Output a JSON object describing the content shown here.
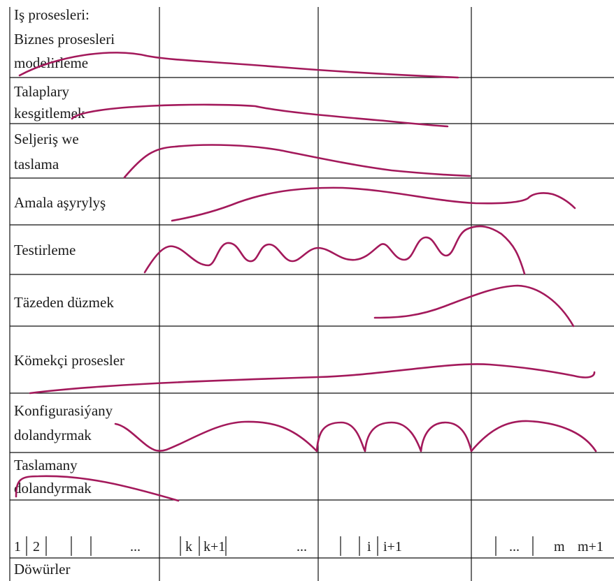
{
  "curve_color": "#a3195b",
  "rows": [
    {
      "id": "business",
      "lines": [
        "Iş prosesleri:",
        "Biznes prosesleri",
        "modelirleme"
      ]
    },
    {
      "id": "requirements",
      "lines": [
        "Talaplary",
        "kesgitlemek"
      ]
    },
    {
      "id": "analysis",
      "lines": [
        "Seljeriş we",
        "taslama"
      ]
    },
    {
      "id": "implementation",
      "lines": [
        "Amala aşyrylyş"
      ]
    },
    {
      "id": "testing",
      "lines": [
        "Testirleme"
      ]
    },
    {
      "id": "deployment",
      "lines": [
        "Täzeden düzmek"
      ]
    },
    {
      "id": "support",
      "lines": [
        "Kömekçi prosesler"
      ]
    },
    {
      "id": "config",
      "lines": [
        "Konfigurasiýany",
        "dolandyrmak"
      ]
    },
    {
      "id": "project",
      "lines": [
        "Taslamany",
        "dolandyrmak"
      ]
    }
  ],
  "iterations": {
    "labels": [
      "1",
      "2",
      "...",
      "k",
      "k+1",
      "...",
      "i",
      "i+1",
      "...",
      "m",
      "m+1"
    ]
  },
  "footer": {
    "label": "Döwürler"
  }
}
